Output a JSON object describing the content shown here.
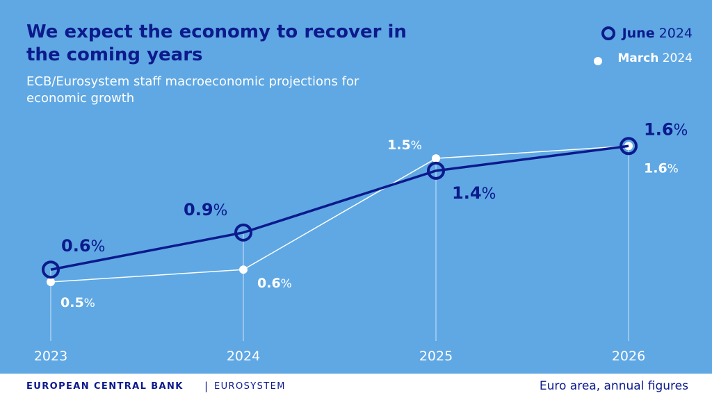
{
  "title": "We expect the economy to recover in the coming years",
  "subtitle": "ECB/Eurosystem staff macroeconomic projections for economic growth",
  "legend": {
    "june": {
      "name": "June",
      "year": "2024"
    },
    "march": {
      "name": "March",
      "year": "2024"
    }
  },
  "footer": {
    "org": "EUROPEAN CENTRAL BANK",
    "separator": "|",
    "system": "EUROSYSTEM",
    "note": "Euro area, annual figures"
  },
  "colors": {
    "background": "#5fa8e4",
    "june": "#0c1a8c",
    "march": "#ffffff",
    "footer_bg": "#ffffff"
  },
  "chart_data": {
    "type": "line",
    "title": "We expect the economy to recover in the coming years",
    "categories": [
      "2023",
      "2024",
      "2025",
      "2026"
    ],
    "x": [
      2023,
      2024,
      2025,
      2026
    ],
    "xlabel": "",
    "ylabel": "",
    "ylim": [
      0.0,
      1.95
    ],
    "unit": "%",
    "grid": false,
    "legend_position": "top-right",
    "series": [
      {
        "name": "June 2024",
        "values": [
          0.6,
          0.9,
          1.4,
          1.6
        ],
        "labels": [
          "0.6",
          "0.9",
          "1.4",
          "1.6"
        ]
      },
      {
        "name": "March 2024",
        "values": [
          0.5,
          0.6,
          1.5,
          1.6
        ],
        "labels": [
          "0.5",
          "0.6",
          "1.5",
          "1.6"
        ]
      }
    ]
  }
}
